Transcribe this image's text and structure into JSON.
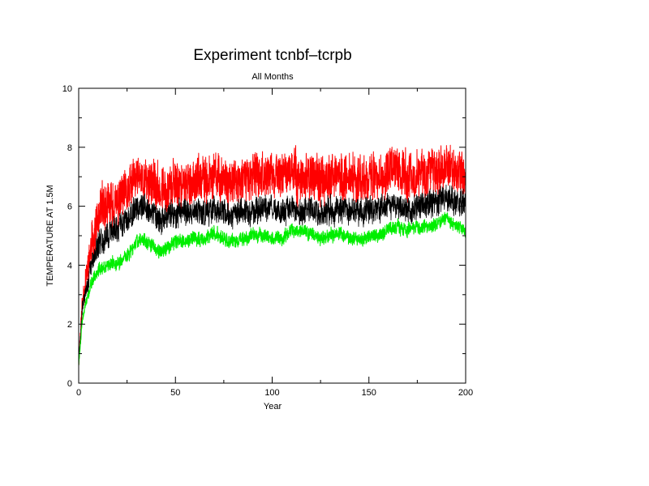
{
  "chart_data": {
    "type": "line",
    "title": "Experiment tcnbf–tcrpb",
    "subtitle": "All Months",
    "xlabel": "Year",
    "ylabel": "TEMPERATURE AT 1.5M",
    "xlim": [
      0,
      200
    ],
    "ylim": [
      0,
      10
    ],
    "xticks": [
      "0",
      "50",
      "100",
      "150",
      "200"
    ],
    "yticks": [
      "0",
      "2",
      "4",
      "6",
      "8",
      "10"
    ],
    "grid": false,
    "legend": "none",
    "series": [
      {
        "color": "#ff0000",
        "x": [
          0,
          2,
          4,
          6,
          8,
          10,
          12,
          15,
          18,
          20,
          22,
          25,
          28,
          30,
          32,
          35,
          38,
          40,
          43,
          46,
          50,
          55,
          60,
          65,
          70,
          75,
          80,
          85,
          90,
          95,
          100,
          105,
          110,
          115,
          120,
          125,
          130,
          135,
          140,
          145,
          150,
          155,
          160,
          165,
          170,
          175,
          180,
          185,
          190,
          195,
          200
        ],
        "values": [
          0.8,
          2.8,
          3.7,
          4.4,
          5.1,
          5.4,
          6.0,
          5.9,
          6.1,
          6.0,
          6.3,
          6.4,
          6.8,
          7.0,
          7.0,
          6.8,
          6.9,
          6.6,
          6.5,
          6.6,
          6.8,
          6.7,
          6.9,
          6.8,
          7.0,
          6.9,
          6.7,
          6.9,
          7.0,
          7.1,
          7.0,
          7.0,
          7.2,
          6.9,
          7.0,
          6.8,
          7.1,
          7.0,
          7.0,
          6.8,
          7.0,
          7.0,
          7.1,
          7.2,
          7.0,
          7.1,
          7.2,
          7.2,
          7.4,
          7.1,
          7.0
        ]
      },
      {
        "color": "#000000",
        "x": [
          0,
          2,
          4,
          6,
          8,
          10,
          12,
          15,
          18,
          20,
          22,
          25,
          28,
          30,
          32,
          35,
          38,
          40,
          43,
          46,
          50,
          55,
          60,
          65,
          70,
          75,
          80,
          85,
          90,
          95,
          100,
          105,
          110,
          115,
          120,
          125,
          130,
          135,
          140,
          145,
          150,
          155,
          160,
          165,
          170,
          175,
          180,
          185,
          190,
          195,
          200
        ],
        "values": [
          0.7,
          2.6,
          3.2,
          3.8,
          4.3,
          4.6,
          4.9,
          5.0,
          5.2,
          5.2,
          5.4,
          5.6,
          5.8,
          6.0,
          6.0,
          5.9,
          5.8,
          5.7,
          5.6,
          5.7,
          5.7,
          5.8,
          5.8,
          5.8,
          5.9,
          5.8,
          5.7,
          5.8,
          5.8,
          5.9,
          5.9,
          5.8,
          5.9,
          5.8,
          5.9,
          5.8,
          5.9,
          5.9,
          5.9,
          5.8,
          5.9,
          5.9,
          6.0,
          6.0,
          5.9,
          6.0,
          6.1,
          6.1,
          6.3,
          6.1,
          6.0
        ]
      },
      {
        "color": "#00ee00",
        "x": [
          0,
          2,
          4,
          6,
          8,
          10,
          12,
          15,
          18,
          20,
          22,
          25,
          28,
          30,
          32,
          35,
          38,
          40,
          43,
          46,
          50,
          55,
          60,
          65,
          70,
          75,
          80,
          85,
          90,
          95,
          100,
          105,
          110,
          115,
          120,
          125,
          130,
          135,
          140,
          145,
          150,
          155,
          160,
          165,
          170,
          175,
          180,
          185,
          190,
          195,
          200
        ],
        "values": [
          0.6,
          2.2,
          2.8,
          3.3,
          3.6,
          3.8,
          3.9,
          4.0,
          4.1,
          4.0,
          4.2,
          4.3,
          4.6,
          4.8,
          4.9,
          4.8,
          4.7,
          4.5,
          4.5,
          4.6,
          4.8,
          4.8,
          4.9,
          4.9,
          5.1,
          4.9,
          4.8,
          4.9,
          5.0,
          5.0,
          4.9,
          4.9,
          5.2,
          5.2,
          5.1,
          4.9,
          5.0,
          5.1,
          4.9,
          4.9,
          5.0,
          5.0,
          5.2,
          5.3,
          5.2,
          5.3,
          5.3,
          5.4,
          5.6,
          5.3,
          5.2
        ]
      }
    ]
  }
}
